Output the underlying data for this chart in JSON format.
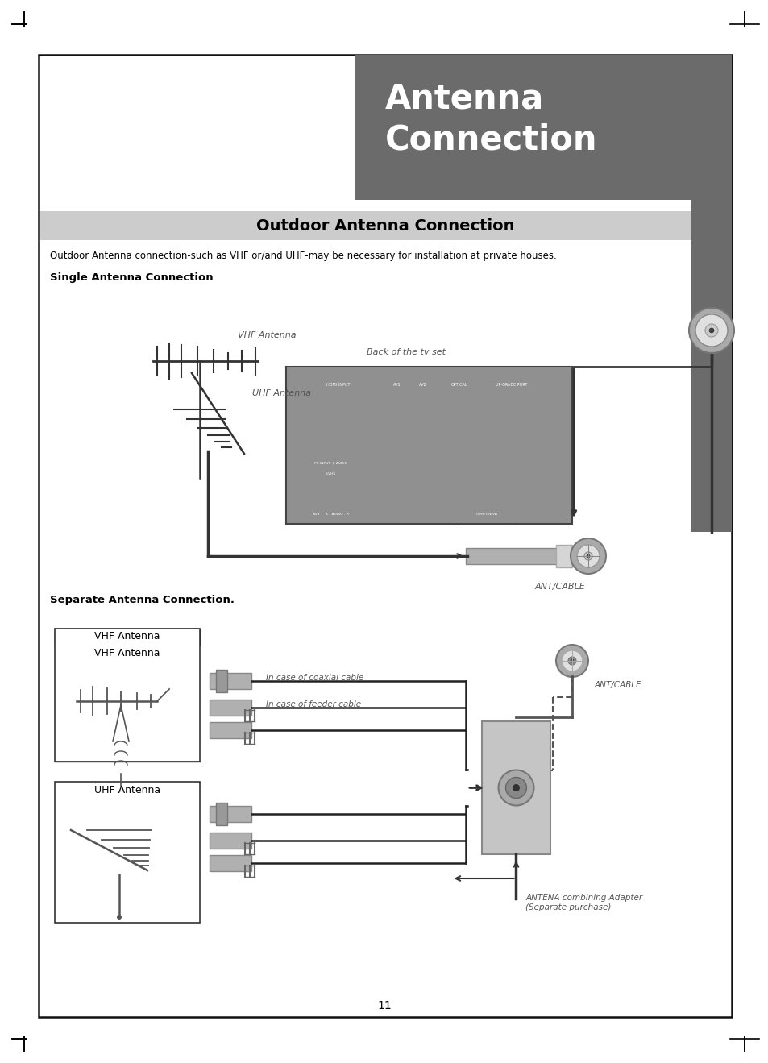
{
  "page_bg": "#ffffff",
  "page_number": "11",
  "title_box_color": "#6b6b6b",
  "title_text_color": "#ffffff",
  "title_font_size": 30,
  "section_bar_color": "#cccccc",
  "section_title": "Outdoor Antenna Connection",
  "section_title_fontsize": 14,
  "body_text1": "Outdoor Antenna connection-such as VHF or/and UHF-may be necessary for installation at private houses.",
  "subsection1": "Single Antenna Connection",
  "subsection2": "Separate Antenna Connection.",
  "label_vhf_antenna": "VHF Antenna",
  "label_uhf_antenna": "UHF Antenna",
  "label_back_tv": "Back of the tv set",
  "label_ant_cable": "ANT/CABLE",
  "label_ant_cable2": "ANT/CABLE",
  "label_antenna_combining": "ANTENA combining Adapter\n(Separate purchase)",
  "label_in_coaxial": "In case of coaxial cable",
  "label_in_feeder": "In case of feeder cable"
}
